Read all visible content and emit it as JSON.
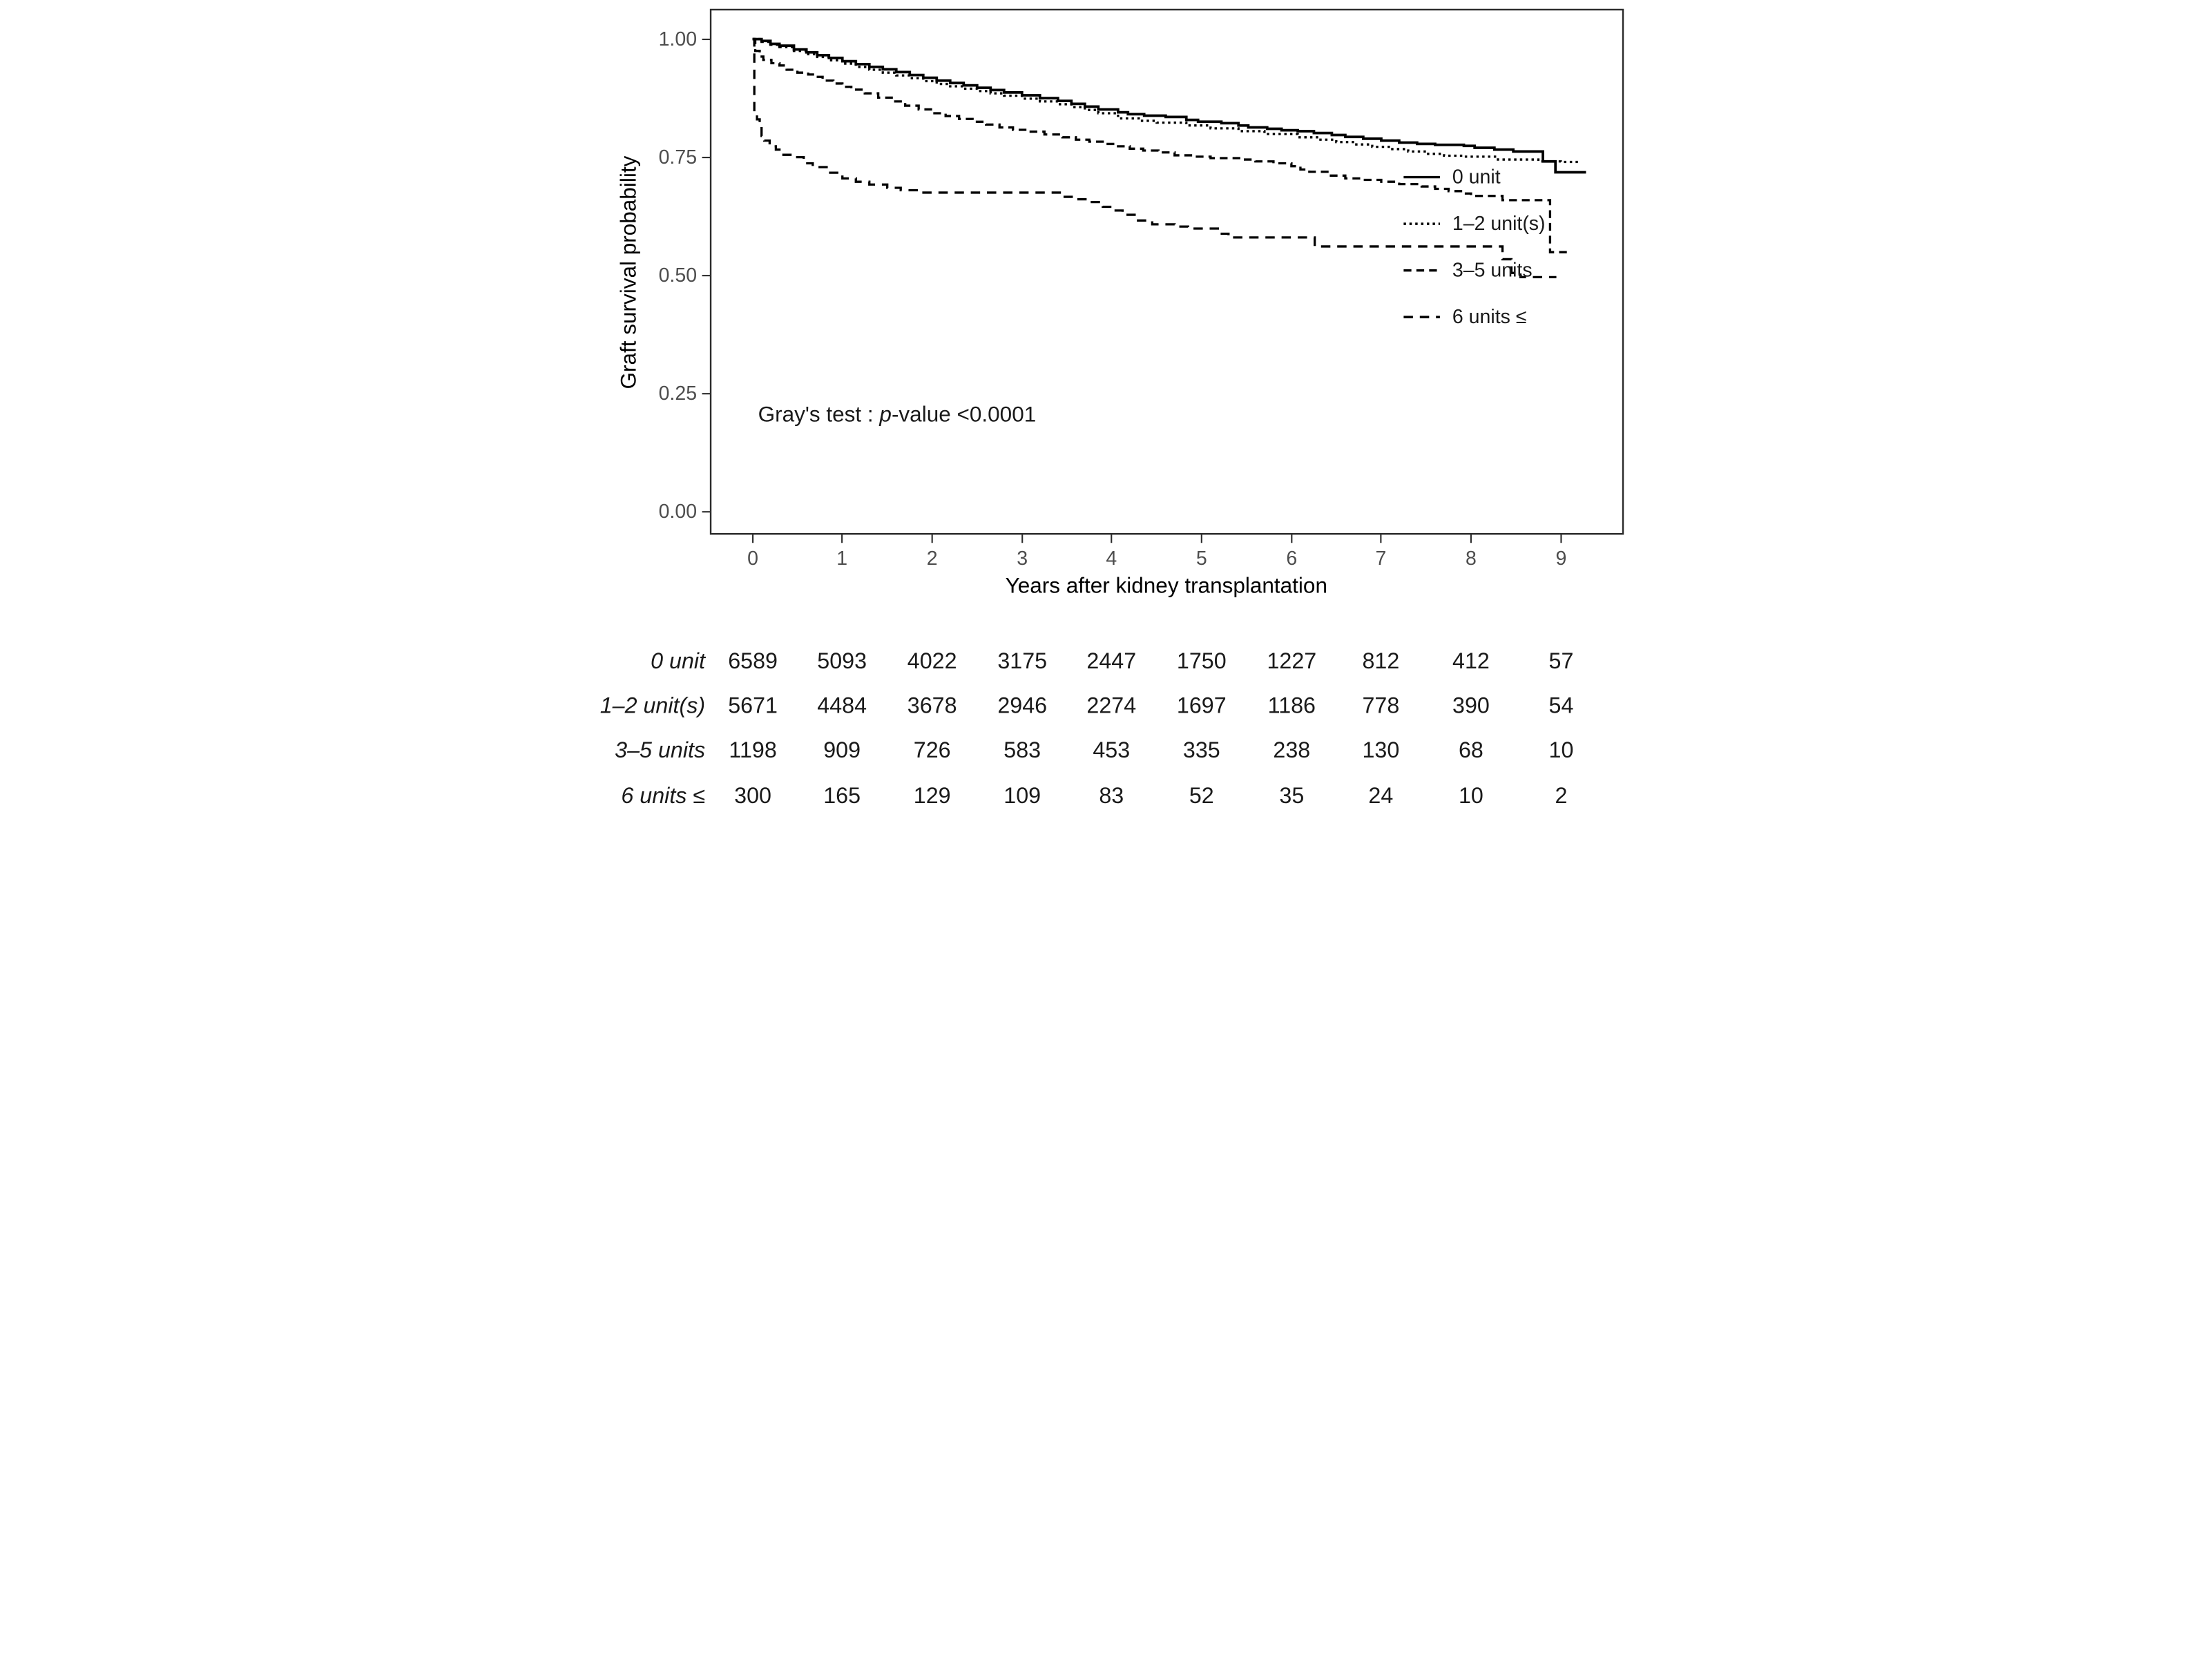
{
  "annotation": {
    "prefix": "Gray's test : ",
    "p": "p",
    "suffix": "-value <0.0001"
  },
  "chart_data": {
    "type": "line",
    "subtype": "kaplan-meier-step",
    "title": "",
    "xlabel": "Years after kidney transplantation",
    "ylabel": "Graft survival probability",
    "xlim": [
      -0.5,
      9.7
    ],
    "ylim": [
      0,
      1.05
    ],
    "x_ticks": [
      0,
      1,
      2,
      3,
      4,
      5,
      6,
      7,
      8,
      9
    ],
    "y_tick_labels": [
      "1.00",
      "0.75",
      "0.50",
      "0.25",
      "0.00"
    ],
    "y_tick_values": [
      1.0,
      0.75,
      0.5,
      0.25,
      0.0
    ],
    "grid": false,
    "legend_position": "inside right",
    "series": [
      {
        "name": "0 unit",
        "line_style": "solid",
        "color": "#000000",
        "end": 9.28,
        "points": [
          [
            0,
            1.0
          ],
          [
            0.1,
            0.996
          ],
          [
            0.2,
            0.99
          ],
          [
            0.3,
            0.986
          ],
          [
            0.46,
            0.978
          ],
          [
            0.6,
            0.972
          ],
          [
            0.72,
            0.966
          ],
          [
            0.85,
            0.96
          ],
          [
            1.0,
            0.953
          ],
          [
            1.15,
            0.947
          ],
          [
            1.3,
            0.941
          ],
          [
            1.45,
            0.936
          ],
          [
            1.6,
            0.93
          ],
          [
            1.75,
            0.924
          ],
          [
            1.9,
            0.918
          ],
          [
            2.05,
            0.912
          ],
          [
            2.2,
            0.907
          ],
          [
            2.35,
            0.902
          ],
          [
            2.5,
            0.897
          ],
          [
            2.65,
            0.892
          ],
          [
            2.8,
            0.887
          ],
          [
            3.0,
            0.881
          ],
          [
            3.2,
            0.875
          ],
          [
            3.4,
            0.869
          ],
          [
            3.55,
            0.863
          ],
          [
            3.7,
            0.857
          ],
          [
            3.85,
            0.851
          ],
          [
            4.07,
            0.845
          ],
          [
            4.18,
            0.841
          ],
          [
            4.36,
            0.838
          ],
          [
            4.6,
            0.835
          ],
          [
            4.83,
            0.829
          ],
          [
            4.96,
            0.825
          ],
          [
            5.22,
            0.822
          ],
          [
            5.41,
            0.817
          ],
          [
            5.52,
            0.813
          ],
          [
            5.73,
            0.81
          ],
          [
            5.89,
            0.807
          ],
          [
            6.07,
            0.805
          ],
          [
            6.25,
            0.801
          ],
          [
            6.45,
            0.797
          ],
          [
            6.6,
            0.793
          ],
          [
            6.8,
            0.789
          ],
          [
            7.0,
            0.785
          ],
          [
            7.2,
            0.781
          ],
          [
            7.4,
            0.778
          ],
          [
            7.6,
            0.776
          ],
          [
            7.92,
            0.774
          ],
          [
            8.04,
            0.77
          ],
          [
            8.26,
            0.766
          ],
          [
            8.47,
            0.762
          ],
          [
            8.8,
            0.741
          ],
          [
            8.94,
            0.718
          ]
        ]
      },
      {
        "name": "1–2 unit(s)",
        "line_style": "dotted",
        "color": "#000000",
        "end": 9.2,
        "points": [
          [
            0,
            1.0
          ],
          [
            0.1,
            0.994
          ],
          [
            0.2,
            0.988
          ],
          [
            0.3,
            0.983
          ],
          [
            0.46,
            0.975
          ],
          [
            0.6,
            0.968
          ],
          [
            0.72,
            0.962
          ],
          [
            0.85,
            0.955
          ],
          [
            1.0,
            0.948
          ],
          [
            1.15,
            0.941
          ],
          [
            1.3,
            0.935
          ],
          [
            1.45,
            0.929
          ],
          [
            1.6,
            0.923
          ],
          [
            1.75,
            0.917
          ],
          [
            1.9,
            0.911
          ],
          [
            2.05,
            0.905
          ],
          [
            2.2,
            0.9
          ],
          [
            2.35,
            0.895
          ],
          [
            2.5,
            0.89
          ],
          [
            2.65,
            0.885
          ],
          [
            2.8,
            0.88
          ],
          [
            3.0,
            0.874
          ],
          [
            3.2,
            0.868
          ],
          [
            3.4,
            0.862
          ],
          [
            3.55,
            0.856
          ],
          [
            3.7,
            0.85
          ],
          [
            3.85,
            0.843
          ],
          [
            4.07,
            0.832
          ],
          [
            4.3,
            0.827
          ],
          [
            4.5,
            0.823
          ],
          [
            4.83,
            0.817
          ],
          [
            5.1,
            0.811
          ],
          [
            5.41,
            0.805
          ],
          [
            5.7,
            0.799
          ],
          [
            6.07,
            0.792
          ],
          [
            6.3,
            0.787
          ],
          [
            6.5,
            0.782
          ],
          [
            6.7,
            0.777
          ],
          [
            6.9,
            0.772
          ],
          [
            7.1,
            0.767
          ],
          [
            7.3,
            0.762
          ],
          [
            7.5,
            0.757
          ],
          [
            7.7,
            0.753
          ],
          [
            7.92,
            0.751
          ],
          [
            8.3,
            0.745
          ],
          [
            8.75,
            0.741
          ],
          [
            9.0,
            0.74
          ]
        ]
      },
      {
        "name": "3–5 units",
        "line_style": "dashed",
        "color": "#000000",
        "end": 9.07,
        "points": [
          [
            0,
            1.0
          ],
          [
            0.03,
            0.975
          ],
          [
            0.08,
            0.963
          ],
          [
            0.12,
            0.956
          ],
          [
            0.21,
            0.949
          ],
          [
            0.3,
            0.944
          ],
          [
            0.38,
            0.935
          ],
          [
            0.5,
            0.929
          ],
          [
            0.62,
            0.925
          ],
          [
            0.7,
            0.92
          ],
          [
            0.78,
            0.912
          ],
          [
            0.9,
            0.906
          ],
          [
            1.0,
            0.899
          ],
          [
            1.1,
            0.893
          ],
          [
            1.25,
            0.885
          ],
          [
            1.4,
            0.876
          ],
          [
            1.55,
            0.868
          ],
          [
            1.7,
            0.859
          ],
          [
            1.85,
            0.851
          ],
          [
            2.0,
            0.843
          ],
          [
            2.15,
            0.837
          ],
          [
            2.3,
            0.831
          ],
          [
            2.45,
            0.825
          ],
          [
            2.6,
            0.819
          ],
          [
            2.75,
            0.813
          ],
          [
            2.9,
            0.808
          ],
          [
            3.05,
            0.804
          ],
          [
            3.25,
            0.798
          ],
          [
            3.45,
            0.792
          ],
          [
            3.6,
            0.787
          ],
          [
            3.75,
            0.783
          ],
          [
            3.93,
            0.778
          ],
          [
            4.07,
            0.773
          ],
          [
            4.2,
            0.768
          ],
          [
            4.35,
            0.764
          ],
          [
            4.52,
            0.76
          ],
          [
            4.7,
            0.754
          ],
          [
            4.9,
            0.751
          ],
          [
            5.1,
            0.748
          ],
          [
            5.45,
            0.745
          ],
          [
            5.6,
            0.741
          ],
          [
            5.8,
            0.737
          ],
          [
            6.0,
            0.731
          ],
          [
            6.1,
            0.724
          ],
          [
            6.2,
            0.719
          ],
          [
            6.42,
            0.711
          ],
          [
            6.6,
            0.705
          ],
          [
            6.8,
            0.702
          ],
          [
            7.0,
            0.698
          ],
          [
            7.2,
            0.693
          ],
          [
            7.45,
            0.688
          ],
          [
            7.6,
            0.683
          ],
          [
            7.75,
            0.678
          ],
          [
            7.92,
            0.673
          ],
          [
            8.0,
            0.668
          ],
          [
            8.35,
            0.659
          ],
          [
            8.88,
            0.549
          ]
        ]
      },
      {
        "name": "6 units ≤",
        "line_style": "longdash",
        "color": "#000000",
        "end": 8.95,
        "points": [
          [
            0,
            1.0
          ],
          [
            0.02,
            0.845
          ],
          [
            0.05,
            0.83
          ],
          [
            0.08,
            0.815
          ],
          [
            0.1,
            0.795
          ],
          [
            0.13,
            0.785
          ],
          [
            0.19,
            0.773
          ],
          [
            0.26,
            0.766
          ],
          [
            0.33,
            0.755
          ],
          [
            0.45,
            0.75
          ],
          [
            0.57,
            0.737
          ],
          [
            0.67,
            0.729
          ],
          [
            0.84,
            0.717
          ],
          [
            1.0,
            0.705
          ],
          [
            1.15,
            0.698
          ],
          [
            1.3,
            0.692
          ],
          [
            1.5,
            0.685
          ],
          [
            1.65,
            0.68
          ],
          [
            1.85,
            0.675
          ],
          [
            3.45,
            0.666
          ],
          [
            3.6,
            0.661
          ],
          [
            3.75,
            0.655
          ],
          [
            3.9,
            0.645
          ],
          [
            4.0,
            0.637
          ],
          [
            4.12,
            0.628
          ],
          [
            4.27,
            0.616
          ],
          [
            4.45,
            0.608
          ],
          [
            4.7,
            0.603
          ],
          [
            4.85,
            0.599
          ],
          [
            5.2,
            0.588
          ],
          [
            5.3,
            0.58
          ],
          [
            6.26,
            0.561
          ],
          [
            8.35,
            0.534
          ],
          [
            8.45,
            0.505
          ],
          [
            8.55,
            0.496
          ]
        ]
      }
    ]
  },
  "risk_table": {
    "columns": [
      0,
      1,
      2,
      3,
      4,
      5,
      6,
      7,
      8,
      9
    ],
    "rows": [
      {
        "label": "0 unit",
        "values": [
          6589,
          5093,
          4022,
          3175,
          2447,
          1750,
          1227,
          812,
          412,
          57
        ]
      },
      {
        "label": "1–2 unit(s)",
        "values": [
          5671,
          4484,
          3678,
          2946,
          2274,
          1697,
          1186,
          778,
          390,
          54
        ]
      },
      {
        "label": "3–5 units",
        "values": [
          1198,
          909,
          726,
          583,
          453,
          335,
          238,
          130,
          68,
          10
        ]
      },
      {
        "label": "6 units ≤",
        "values": [
          300,
          165,
          129,
          109,
          83,
          52,
          35,
          24,
          10,
          2
        ]
      }
    ]
  }
}
